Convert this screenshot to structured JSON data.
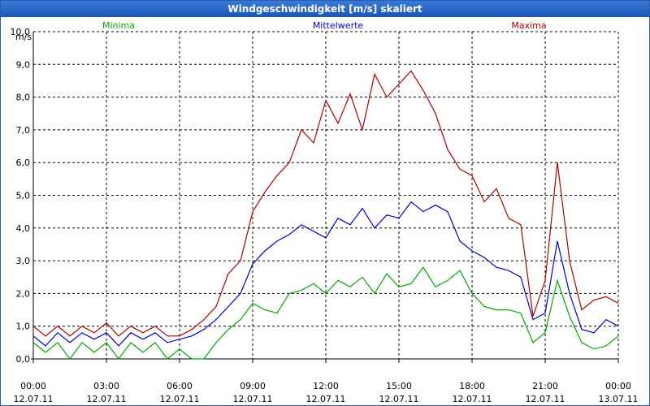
{
  "window": {
    "title": "Windgeschwindigkeit [m/s] skaliert"
  },
  "chart_data": {
    "type": "line",
    "title": "Windgeschwindigkeit [m/s] skaliert",
    "ylabel": "m/s",
    "ylim": [
      0,
      10
    ],
    "xlim_hours": [
      0,
      24
    ],
    "grid": true,
    "yticks": [
      "0,0",
      "1,0",
      "2,0",
      "3,0",
      "4,0",
      "5,0",
      "6,0",
      "7,0",
      "8,0",
      "9,0",
      "10,0"
    ],
    "xticks": [
      {
        "time": "00:00",
        "date": "12.07.11"
      },
      {
        "time": "03:00",
        "date": "12.07.11"
      },
      {
        "time": "06:00",
        "date": "12.07.11"
      },
      {
        "time": "09:00",
        "date": "12.07.11"
      },
      {
        "time": "12:00",
        "date": "12.07.11"
      },
      {
        "time": "15:00",
        "date": "12.07.11"
      },
      {
        "time": "18:00",
        "date": "12.07.11"
      },
      {
        "time": "21:00",
        "date": "12.07.11"
      },
      {
        "time": "00:00",
        "date": "13.07.11"
      }
    ],
    "series": [
      {
        "name": "Minima",
        "color": "#00aa00",
        "legend_pos": "left",
        "x": [
          0,
          0.5,
          1,
          1.5,
          2,
          2.5,
          3,
          3.5,
          4,
          4.5,
          5,
          5.5,
          6,
          6.5,
          7,
          7.5,
          8,
          8.5,
          9,
          9.5,
          10,
          10.5,
          11,
          11.5,
          12,
          12.5,
          13,
          13.5,
          14,
          14.5,
          15,
          15.5,
          16,
          16.5,
          17,
          17.5,
          18,
          18.5,
          19,
          19.5,
          20,
          20.5,
          21,
          21.5,
          22,
          22.5,
          23,
          23.5,
          24
        ],
        "values": [
          0.5,
          0.2,
          0.5,
          0.0,
          0.5,
          0.2,
          0.5,
          0.0,
          0.5,
          0.2,
          0.5,
          0.0,
          0.3,
          0.0,
          0.0,
          0.5,
          0.9,
          1.2,
          1.7,
          1.5,
          1.4,
          2.0,
          2.1,
          2.3,
          2.0,
          2.4,
          2.2,
          2.5,
          2.0,
          2.6,
          2.2,
          2.3,
          2.8,
          2.2,
          2.4,
          2.7,
          2.0,
          1.6,
          1.5,
          1.5,
          1.4,
          0.5,
          0.8,
          2.4,
          1.3,
          0.5,
          0.3,
          0.4,
          0.7
        ]
      },
      {
        "name": "Mittelwerte",
        "color": "#0000cc",
        "legend_pos": "center",
        "x": [
          0,
          0.5,
          1,
          1.5,
          2,
          2.5,
          3,
          3.5,
          4,
          4.5,
          5,
          5.5,
          6,
          6.5,
          7,
          7.5,
          8,
          8.5,
          9,
          9.5,
          10,
          10.5,
          11,
          11.5,
          12,
          12.5,
          13,
          13.5,
          14,
          14.5,
          15,
          15.5,
          16,
          16.5,
          17,
          17.5,
          18,
          18.5,
          19,
          19.5,
          20,
          20.5,
          21,
          21.5,
          22,
          22.5,
          23,
          23.5,
          24
        ],
        "values": [
          0.7,
          0.4,
          0.8,
          0.5,
          0.8,
          0.6,
          0.8,
          0.4,
          0.8,
          0.6,
          0.8,
          0.5,
          0.6,
          0.7,
          0.9,
          1.2,
          1.6,
          2.0,
          2.9,
          3.3,
          3.6,
          3.8,
          4.1,
          3.9,
          3.7,
          4.3,
          4.1,
          4.6,
          4.0,
          4.4,
          4.3,
          4.8,
          4.5,
          4.7,
          4.5,
          3.6,
          3.3,
          3.1,
          2.8,
          2.7,
          2.5,
          1.2,
          1.4,
          3.6,
          2.0,
          0.9,
          0.8,
          1.2,
          1.0
        ]
      },
      {
        "name": "Maxima",
        "color": "#aa0000",
        "legend_pos": "right",
        "x": [
          0,
          0.5,
          1,
          1.5,
          2,
          2.5,
          3,
          3.5,
          4,
          4.5,
          5,
          5.5,
          6,
          6.5,
          7,
          7.5,
          8,
          8.5,
          9,
          9.5,
          10,
          10.5,
          11,
          11.5,
          12,
          12.5,
          13,
          13.5,
          14,
          14.5,
          15,
          15.5,
          16,
          16.5,
          17,
          17.5,
          18,
          18.5,
          19,
          19.5,
          20,
          20.5,
          21,
          21.5,
          22,
          22.5,
          23,
          23.5,
          24
        ],
        "values": [
          1.0,
          0.7,
          1.0,
          0.7,
          1.0,
          0.8,
          1.1,
          0.7,
          1.0,
          0.8,
          1.0,
          0.7,
          0.7,
          0.9,
          1.2,
          1.6,
          2.6,
          3.0,
          4.5,
          5.1,
          5.6,
          6.0,
          7.0,
          6.6,
          7.9,
          7.2,
          8.1,
          7.0,
          8.7,
          8.0,
          8.4,
          8.8,
          8.2,
          7.5,
          6.4,
          5.8,
          5.6,
          4.8,
          5.2,
          4.3,
          4.1,
          1.3,
          2.4,
          6.0,
          3.0,
          1.5,
          1.8,
          1.9,
          1.7
        ]
      }
    ]
  }
}
